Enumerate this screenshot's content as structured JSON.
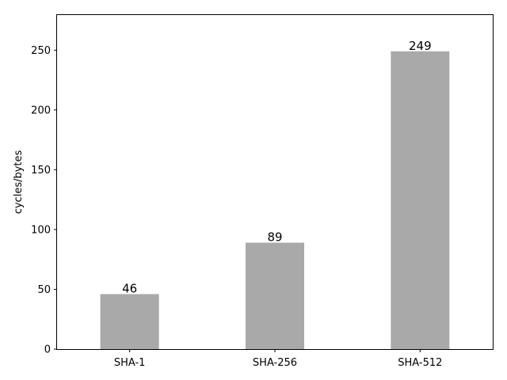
{
  "chart_data": {
    "type": "bar",
    "title": "",
    "xlabel": "",
    "ylabel": "cycles/bytes",
    "categories": [
      "SHA-1",
      "SHA-256",
      "SHA-512"
    ],
    "values": [
      46,
      89,
      249
    ],
    "data_labels": [
      "46",
      "89",
      "249"
    ],
    "ylim": [
      0,
      280
    ],
    "yticks": [
      0,
      50,
      100,
      150,
      200,
      250
    ],
    "ytick_labels": [
      "0",
      "50",
      "100",
      "150",
      "200",
      "250"
    ],
    "grid": false,
    "legend": "none",
    "colors": {
      "bar": "#a9a9a9",
      "axis": "#000000"
    }
  }
}
